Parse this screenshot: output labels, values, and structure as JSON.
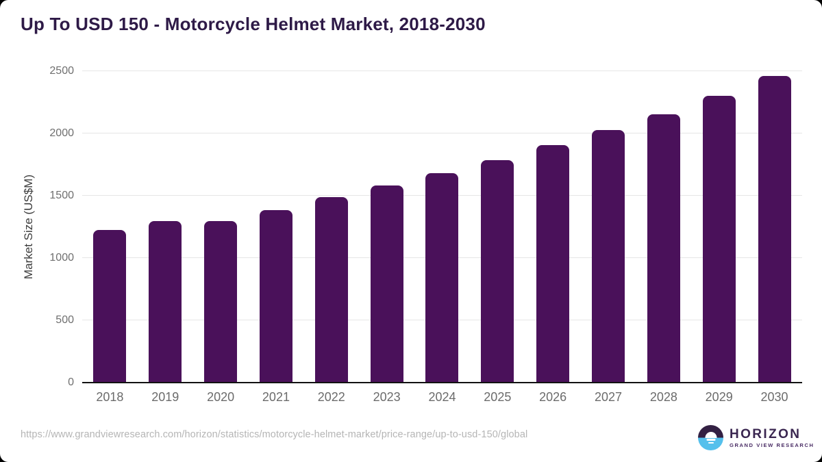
{
  "title": "Up To USD 150 - Motorcycle Helmet Market, 2018-2030",
  "chart_data": {
    "type": "bar",
    "categories": [
      "2018",
      "2019",
      "2020",
      "2021",
      "2022",
      "2023",
      "2024",
      "2025",
      "2026",
      "2027",
      "2028",
      "2029",
      "2030"
    ],
    "values": [
      1224,
      1297,
      1296,
      1387,
      1489,
      1583,
      1681,
      1786,
      1905,
      2027,
      2156,
      2305,
      2464
    ],
    "title": "Up To USD 150 - Motorcycle Helmet Market, 2018-2030",
    "xlabel": "",
    "ylabel": "Market Size (US$M)",
    "ylim": [
      0,
      2500
    ],
    "yticks": [
      0,
      500,
      1000,
      1500,
      2000,
      2500
    ],
    "grid": true,
    "legend": false,
    "bar_color": "#4a115a"
  },
  "footer": {
    "source_url": "https://www.grandviewresearch.com/horizon/statistics/motorcycle-helmet-market/price-range/up-to-usd-150/global",
    "logo": {
      "name": "HORIZON",
      "tagline": "GRAND VIEW RESEARCH"
    }
  },
  "colors": {
    "bar": "#4a115a",
    "title_text": "#2e1a47",
    "tick_label": "#6f6f6f",
    "gridline": "#e6e6e6",
    "axis_line": "#121212",
    "url_text": "#b5b5b5",
    "logo_purple": "#3a2650",
    "logo_blue": "#55c0ec"
  }
}
